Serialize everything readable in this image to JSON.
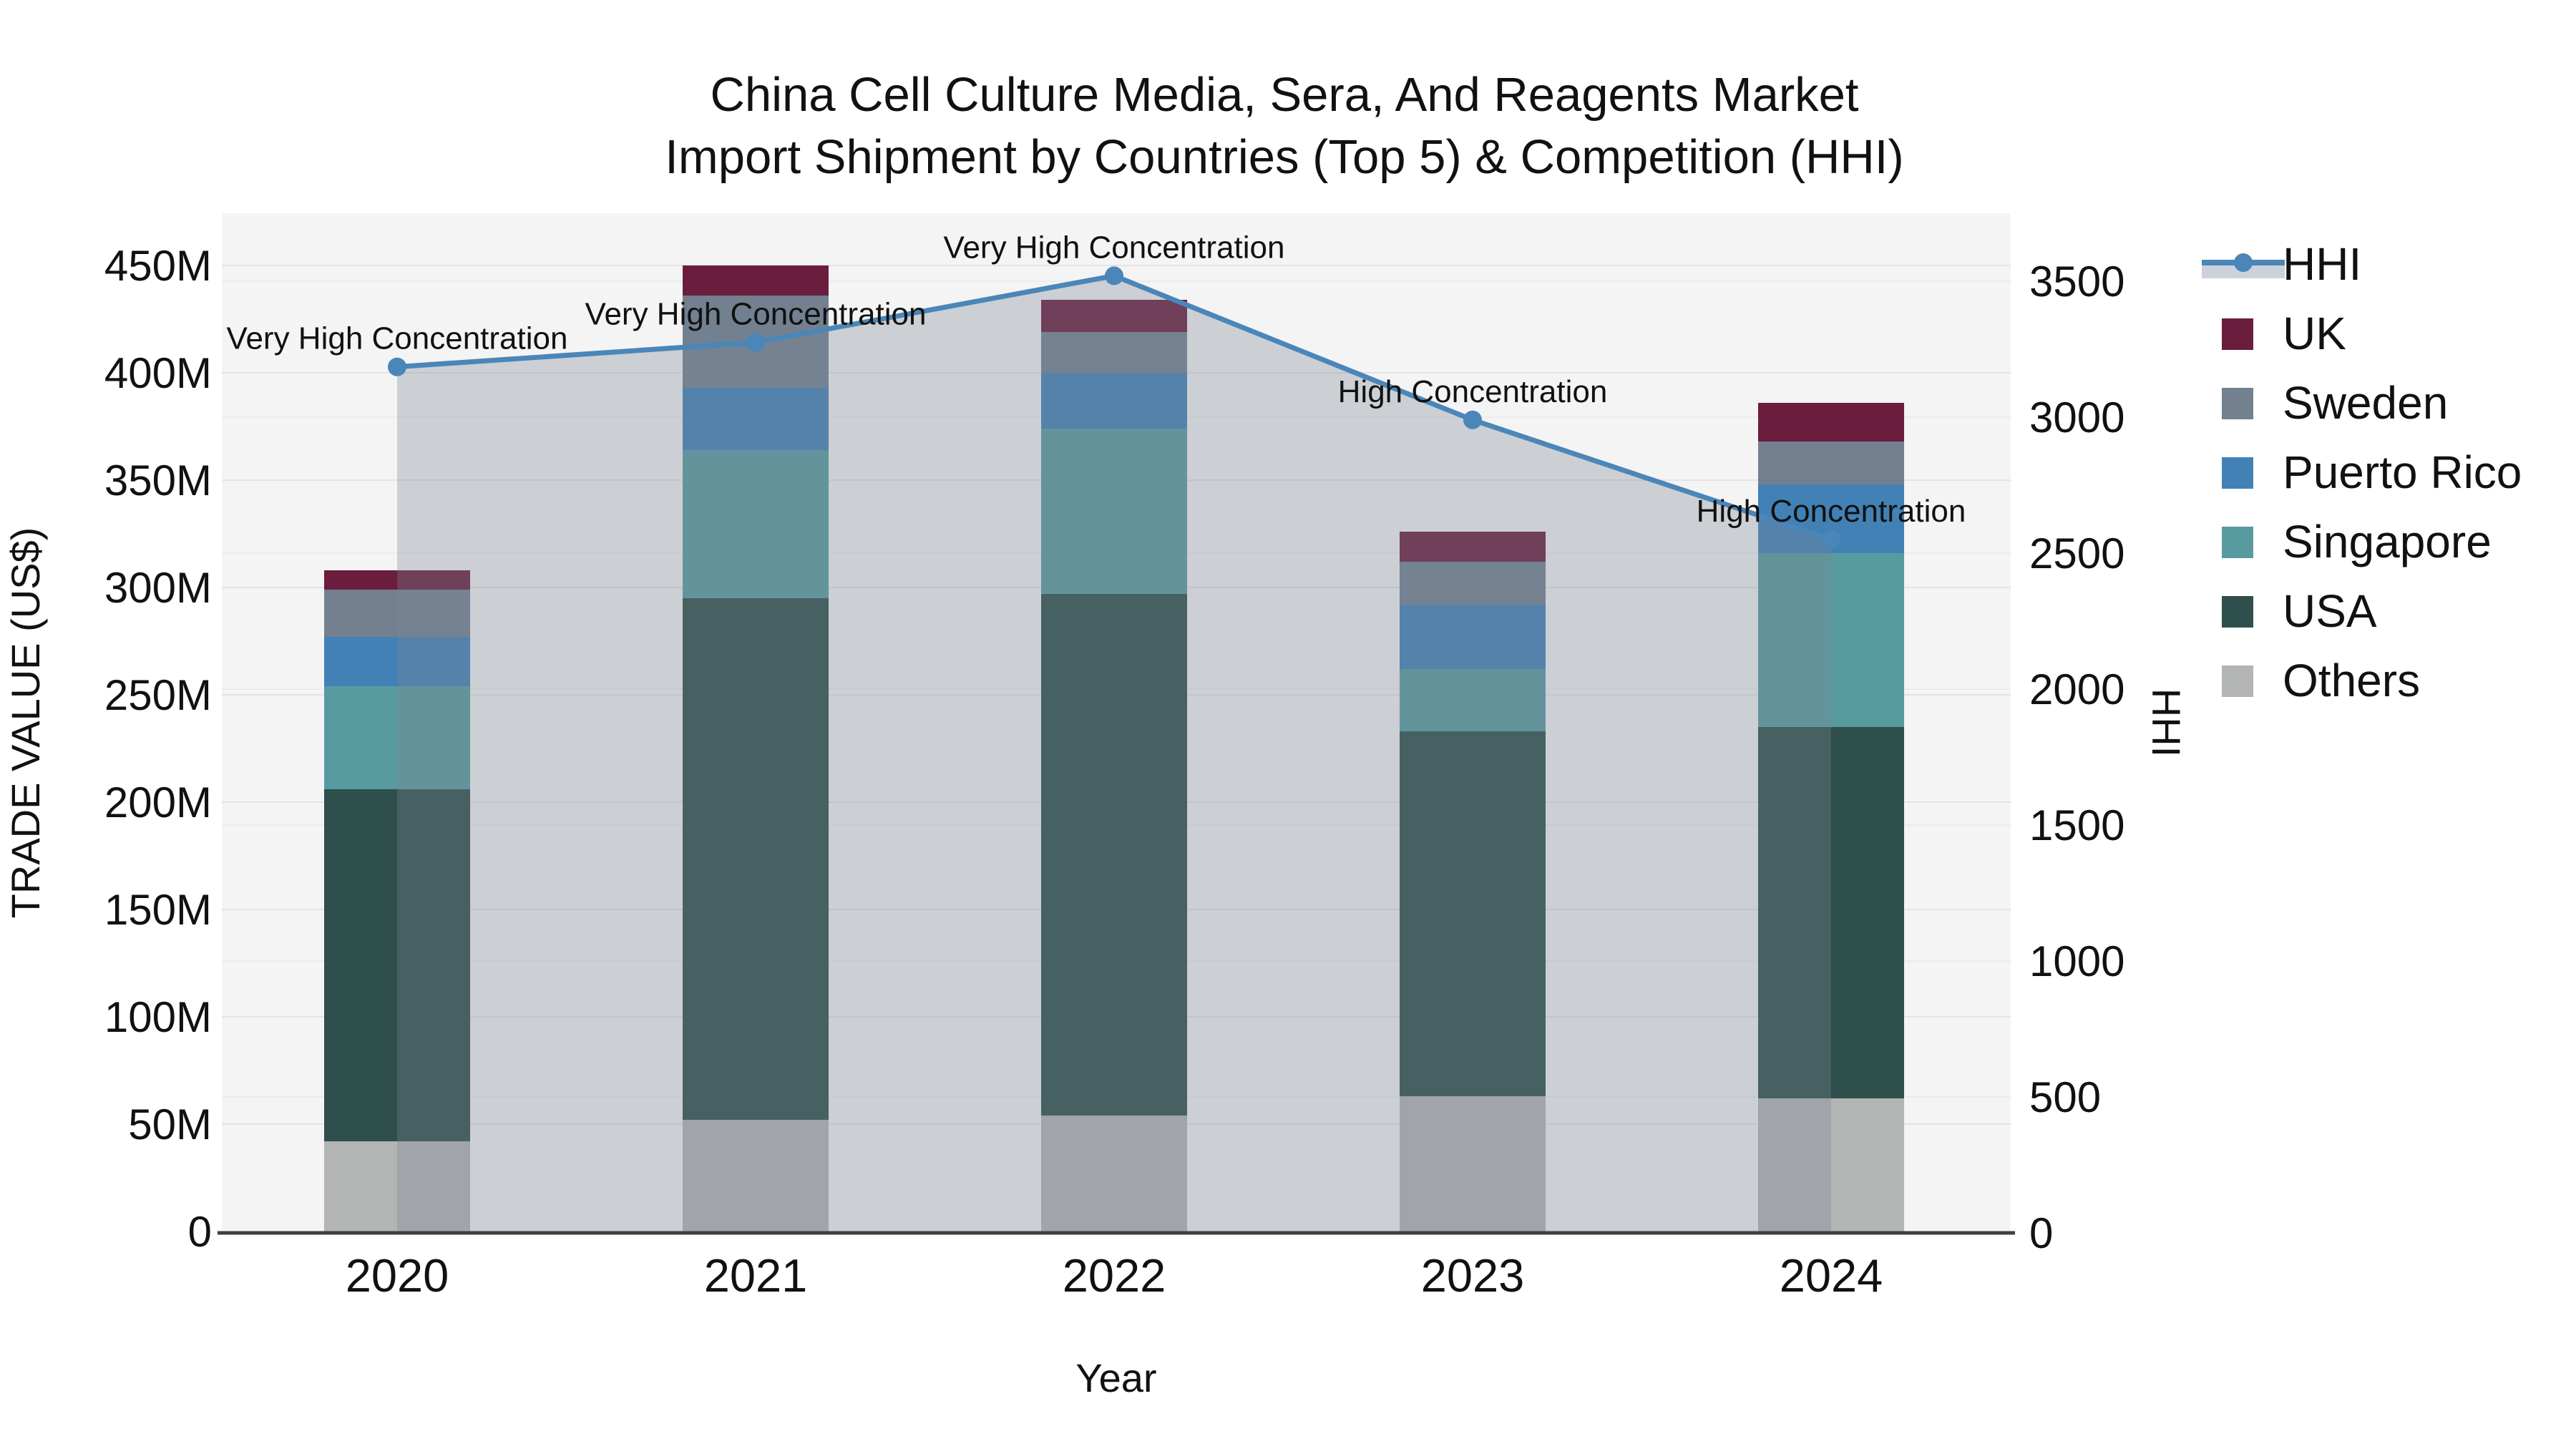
{
  "chart_data": {
    "type": "bar",
    "subtype": "stacked-bar-with-line",
    "title_line1": "China Cell Culture Media, Sera, And Reagents Market",
    "title_line2": "Import Shipment by Countries (Top 5) & Competition (HHI)",
    "xlabel": "Year",
    "ylabel_left": "TRADE VALUE (US$)",
    "ylabel_right": "HHI",
    "categories": [
      "2020",
      "2021",
      "2022",
      "2023",
      "2024"
    ],
    "value_unit": "millions USD",
    "series": [
      {
        "name": "Others",
        "color": "#b3b4b4",
        "values": [
          42,
          52,
          54,
          63,
          62
        ]
      },
      {
        "name": "USA",
        "color": "#2e4f4b",
        "values": [
          164,
          243,
          243,
          170,
          173
        ]
      },
      {
        "name": "Singapore",
        "color": "#579ba0",
        "values": [
          48,
          69,
          77,
          29,
          81
        ]
      },
      {
        "name": "Puerto Rico",
        "color": "#4281b5",
        "values": [
          23,
          29,
          26,
          30,
          32
        ]
      },
      {
        "name": "Sweden",
        "color": "#72808f",
        "values": [
          22,
          43,
          19,
          20,
          20
        ]
      },
      {
        "name": "UK",
        "color": "#6b1d3e",
        "values": [
          9,
          14,
          15,
          14,
          18
        ]
      }
    ],
    "bar_totals": [
      308,
      450,
      434,
      326,
      386
    ],
    "line_series": {
      "name": "HHI",
      "color": "#4a86b8",
      "area_color": "rgba(125,134,148,0.33)",
      "values": [
        3185,
        3275,
        3520,
        2990,
        2550
      ],
      "annotations": [
        "Very High Concentration",
        "Very High Concentration",
        "Very High Concentration",
        "High Concentration",
        "High Concentration"
      ]
    },
    "left_axis": {
      "tick_labels": [
        "0",
        "50M",
        "100M",
        "150M",
        "200M",
        "250M",
        "300M",
        "350M",
        "400M",
        "450M"
      ],
      "tick_values": [
        0,
        50,
        100,
        150,
        200,
        250,
        300,
        350,
        400,
        450
      ],
      "max": 450
    },
    "right_axis": {
      "tick_labels": [
        "0",
        "500",
        "1000",
        "1500",
        "2000",
        "2500",
        "3000",
        "3500"
      ],
      "tick_values": [
        0,
        500,
        1000,
        1500,
        2000,
        2500,
        3000,
        3500
      ],
      "max": 3500
    },
    "legend": {
      "items": [
        "HHI",
        "UK",
        "Sweden",
        "Puerto Rico",
        "Singapore",
        "USA",
        "Others"
      ]
    },
    "colors": {
      "plot_background": "#f4f4f4",
      "gridline": "#e3e3e3",
      "gridline_secondary": "#ececec",
      "axis_line": "#3f3f3f",
      "legend_area_sample": "#ccd2dc",
      "text": "#111111"
    }
  }
}
